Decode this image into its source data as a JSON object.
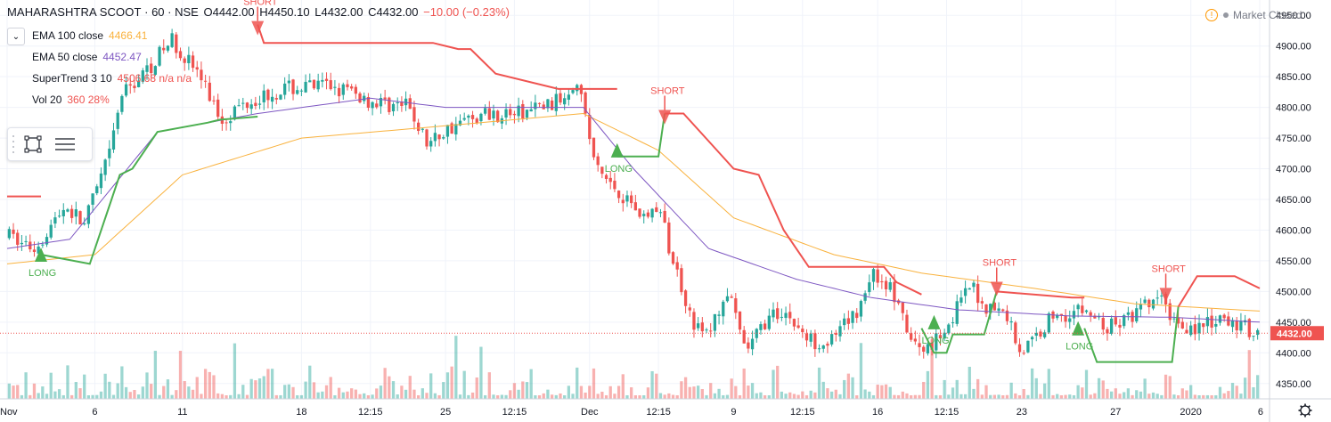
{
  "header": {
    "symbol": "MAHARASHTRA SCOOT",
    "interval": "60",
    "exchange": "NSE",
    "open": "O4442.00",
    "high": "H4450.10",
    "low": "L4432.00",
    "close": "C4432.00",
    "change": "−10.00 (−0.23%)"
  },
  "indicators": [
    {
      "name": "EMA 100 close",
      "value": "4466.41",
      "color": "#f9b23e"
    },
    {
      "name": "EMA 50 close",
      "value": "4452.47",
      "color": "#7e57c2"
    },
    {
      "name": "SuperTrend 3 10",
      "value": "4506.68  n/a  n/a",
      "color": "#ef5350"
    },
    {
      "name": "Vol 20",
      "value": "360  28%",
      "color": "#ef5350"
    }
  ],
  "market_status": "Market Closed",
  "colors": {
    "up": "#26a69a",
    "down": "#ef5350",
    "ema100": "#f9b23e",
    "ema50": "#7e57c2",
    "st_up": "#4caf50",
    "st_down": "#ef5350",
    "grid": "#f0f3fa",
    "last": "#ef5350"
  },
  "icons": [
    "collapse-chevron-icon",
    "rectangle-tool-icon",
    "lines-tool-icon",
    "warning-icon",
    "settings-icon"
  ],
  "chart_data": {
    "type": "candlestick",
    "ylim": [
      4325,
      4975
    ],
    "y_ticks": [
      4350,
      4400,
      4450,
      4500,
      4550,
      4600,
      4650,
      4700,
      4750,
      4800,
      4850,
      4900,
      4950
    ],
    "y_tick_labels": [
      "4350.00",
      "4400.00",
      "4450.00",
      "4500.00",
      "4550.00",
      "4600.00",
      "4650.00",
      "4700.00",
      "4750.00",
      "4800.00",
      "4850.00",
      "4900.00",
      "4950.00"
    ],
    "x_ticks": [
      {
        "label": "Nov",
        "x": 0.0
      },
      {
        "label": "6",
        "x": 0.07
      },
      {
        "label": "11",
        "x": 0.14
      },
      {
        "label": "18",
        "x": 0.235
      },
      {
        "label": "12:15",
        "x": 0.29
      },
      {
        "label": "25",
        "x": 0.35
      },
      {
        "label": "12:15",
        "x": 0.405
      },
      {
        "label": "Dec",
        "x": 0.465
      },
      {
        "label": "12:15",
        "x": 0.52
      },
      {
        "label": "9",
        "x": 0.58
      },
      {
        "label": "12:15",
        "x": 0.635
      },
      {
        "label": "16",
        "x": 0.695
      },
      {
        "label": "12:15",
        "x": 0.75
      },
      {
        "label": "23",
        "x": 0.81
      },
      {
        "label": "27",
        "x": 0.885
      },
      {
        "label": "2020",
        "x": 0.945
      },
      {
        "label": "6",
        "x": 1.0
      }
    ],
    "last_price": "4432.00",
    "price_anchors": [
      [
        0.0,
        4590
      ],
      [
        0.02,
        4570
      ],
      [
        0.045,
        4640
      ],
      [
        0.06,
        4610
      ],
      [
        0.08,
        4720
      ],
      [
        0.09,
        4820
      ],
      [
        0.11,
        4860
      ],
      [
        0.13,
        4910
      ],
      [
        0.15,
        4860
      ],
      [
        0.17,
        4780
      ],
      [
        0.19,
        4810
      ],
      [
        0.22,
        4830
      ],
      [
        0.26,
        4835
      ],
      [
        0.29,
        4810
      ],
      [
        0.32,
        4800
      ],
      [
        0.335,
        4740
      ],
      [
        0.355,
        4770
      ],
      [
        0.38,
        4790
      ],
      [
        0.41,
        4790
      ],
      [
        0.44,
        4810
      ],
      [
        0.455,
        4850
      ],
      [
        0.47,
        4700
      ],
      [
        0.49,
        4660
      ],
      [
        0.51,
        4620
      ],
      [
        0.52,
        4640
      ],
      [
        0.53,
        4560
      ],
      [
        0.55,
        4440
      ],
      [
        0.56,
        4430
      ],
      [
        0.575,
        4500
      ],
      [
        0.59,
        4400
      ],
      [
        0.605,
        4450
      ],
      [
        0.62,
        4470
      ],
      [
        0.64,
        4420
      ],
      [
        0.66,
        4420
      ],
      [
        0.68,
        4470
      ],
      [
        0.69,
        4530
      ],
      [
        0.705,
        4510
      ],
      [
        0.72,
        4430
      ],
      [
        0.73,
        4400
      ],
      [
        0.75,
        4440
      ],
      [
        0.77,
        4510
      ],
      [
        0.78,
        4480
      ],
      [
        0.8,
        4460
      ],
      [
        0.81,
        4400
      ],
      [
        0.82,
        4420
      ],
      [
        0.835,
        4460
      ],
      [
        0.86,
        4470
      ],
      [
        0.88,
        4440
      ],
      [
        0.9,
        4460
      ],
      [
        0.92,
        4490
      ],
      [
        0.935,
        4450
      ],
      [
        0.95,
        4440
      ],
      [
        0.97,
        4450
      ],
      [
        0.985,
        4445
      ],
      [
        1.0,
        4432
      ]
    ],
    "ema100": [
      [
        0.0,
        4545
      ],
      [
        0.07,
        4560
      ],
      [
        0.14,
        4690
      ],
      [
        0.235,
        4750
      ],
      [
        0.35,
        4770
      ],
      [
        0.46,
        4790
      ],
      [
        0.52,
        4730
      ],
      [
        0.58,
        4620
      ],
      [
        0.66,
        4560
      ],
      [
        0.73,
        4530
      ],
      [
        0.82,
        4505
      ],
      [
        0.9,
        4480
      ],
      [
        1.0,
        4468
      ]
    ],
    "ema50": [
      [
        0.0,
        4570
      ],
      [
        0.05,
        4585
      ],
      [
        0.12,
        4760
      ],
      [
        0.2,
        4790
      ],
      [
        0.29,
        4815
      ],
      [
        0.35,
        4800
      ],
      [
        0.46,
        4800
      ],
      [
        0.5,
        4700
      ],
      [
        0.56,
        4570
      ],
      [
        0.63,
        4520
      ],
      [
        0.69,
        4490
      ],
      [
        0.76,
        4470
      ],
      [
        0.85,
        4460
      ],
      [
        0.93,
        4458
      ],
      [
        1.0,
        4450
      ]
    ],
    "supertrend": [
      {
        "dir": "down",
        "pts": [
          [
            0.0,
            4655
          ],
          [
            0.027,
            4655
          ]
        ]
      },
      {
        "dir": "up",
        "pts": [
          [
            0.027,
            4560
          ],
          [
            0.066,
            4545
          ],
          [
            0.09,
            4690
          ],
          [
            0.1,
            4700
          ],
          [
            0.12,
            4760
          ],
          [
            0.16,
            4775
          ],
          [
            0.17,
            4780
          ],
          [
            0.2,
            4785
          ]
        ]
      },
      {
        "dir": "down",
        "pts": [
          [
            0.2,
            4935
          ],
          [
            0.205,
            4905
          ],
          [
            0.34,
            4905
          ],
          [
            0.36,
            4895
          ],
          [
            0.37,
            4895
          ],
          [
            0.39,
            4855
          ],
          [
            0.44,
            4830
          ],
          [
            0.487,
            4830
          ]
        ]
      },
      {
        "dir": "up",
        "pts": [
          [
            0.487,
            4720
          ],
          [
            0.52,
            4720
          ],
          [
            0.525,
            4790
          ]
        ]
      },
      {
        "dir": "down",
        "pts": [
          [
            0.525,
            4790
          ],
          [
            0.54,
            4790
          ],
          [
            0.56,
            4745
          ],
          [
            0.58,
            4700
          ],
          [
            0.6,
            4690
          ],
          [
            0.62,
            4600
          ],
          [
            0.64,
            4540
          ],
          [
            0.7,
            4540
          ],
          [
            0.71,
            4515
          ],
          [
            0.73,
            4495
          ]
        ]
      },
      {
        "dir": "up",
        "pts": [
          [
            0.73,
            4440
          ],
          [
            0.74,
            4400
          ],
          [
            0.75,
            4400
          ],
          [
            0.755,
            4430
          ],
          [
            0.78,
            4430
          ],
          [
            0.79,
            4500
          ]
        ]
      },
      {
        "dir": "down",
        "pts": [
          [
            0.79,
            4500
          ],
          [
            0.85,
            4490
          ],
          [
            0.86,
            4490
          ]
        ]
      },
      {
        "dir": "up",
        "pts": [
          [
            0.86,
            4440
          ],
          [
            0.87,
            4385
          ],
          [
            0.93,
            4385
          ],
          [
            0.935,
            4475
          ]
        ]
      },
      {
        "dir": "down",
        "pts": [
          [
            0.935,
            4475
          ],
          [
            0.95,
            4525
          ],
          [
            0.98,
            4525
          ],
          [
            1.0,
            4505
          ]
        ]
      }
    ],
    "signals": [
      {
        "type": "LONG",
        "x": 0.027,
        "y": 4560
      },
      {
        "type": "SHORT",
        "x": 0.2,
        "y": 4935
      },
      {
        "type": "LONG",
        "x": 0.487,
        "y": 4730
      },
      {
        "type": "SHORT",
        "x": 0.525,
        "y": 4790
      },
      {
        "type": "LONG",
        "x": 0.74,
        "y": 4450
      },
      {
        "type": "SHORT",
        "x": 0.79,
        "y": 4510
      },
      {
        "type": "LONG",
        "x": 0.855,
        "y": 4440
      },
      {
        "type": "SHORT",
        "x": 0.925,
        "y": 4500
      }
    ],
    "legend": "top-left",
    "grid": true
  }
}
